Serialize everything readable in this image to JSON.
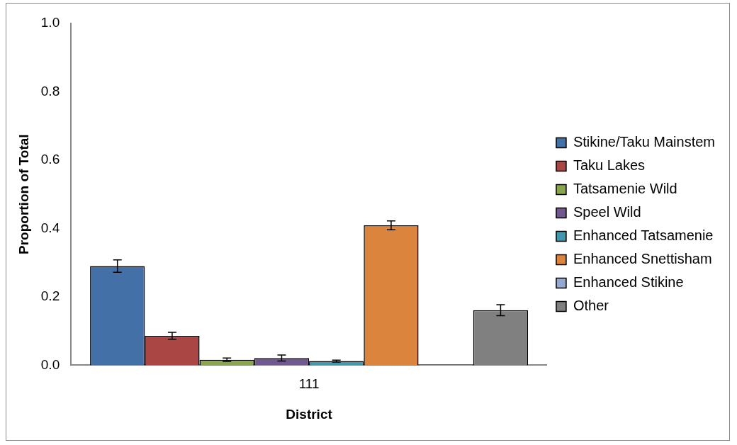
{
  "chart_data": {
    "type": "bar",
    "xlabel": "District",
    "ylabel": "Proportion of Total",
    "categories": [
      "111"
    ],
    "series": [
      {
        "name": "Stikine/Taku Mainstem",
        "color": "#4470a8",
        "values": [
          0.29
        ],
        "errors": [
          0.018
        ]
      },
      {
        "name": "Taku Lakes",
        "color": "#aa4744",
        "values": [
          0.086
        ],
        "errors": [
          0.01
        ]
      },
      {
        "name": "Tatsamenie Wild",
        "color": "#89a54e",
        "values": [
          0.016
        ],
        "errors": [
          0.005
        ]
      },
      {
        "name": "Speel Wild",
        "color": "#71588f",
        "values": [
          0.021
        ],
        "errors": [
          0.009
        ]
      },
      {
        "name": "Enhanced Tatsamenie",
        "color": "#4198af",
        "values": [
          0.012
        ],
        "errors": [
          0.003
        ]
      },
      {
        "name": "Enhanced Snettisham",
        "color": "#db843d",
        "values": [
          0.409
        ],
        "errors": [
          0.013
        ]
      },
      {
        "name": "Enhanced Stikine",
        "color": "#93a9cf",
        "values": [
          0.002
        ],
        "errors": [
          null
        ]
      },
      {
        "name": "Other",
        "color": "#808080",
        "values": [
          0.161
        ],
        "errors": [
          0.016
        ]
      }
    ],
    "ylim": [
      0,
      1
    ],
    "yticks": [
      {
        "value": 0,
        "label": "0.0"
      },
      {
        "value": 0.2,
        "label": "0.2"
      },
      {
        "value": 0.4,
        "label": "0.4"
      },
      {
        "value": 0.6,
        "label": "0.6"
      },
      {
        "value": 0.8,
        "label": "0.8"
      },
      {
        "value": 1,
        "label": "1.0"
      }
    ],
    "grid": false,
    "legend": "right"
  }
}
